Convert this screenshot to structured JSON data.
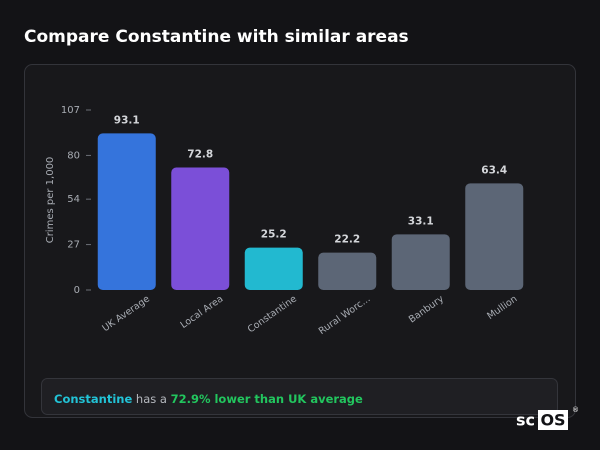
{
  "title": "Compare Constantine with similar areas",
  "chart_data": {
    "type": "bar",
    "y_label": "Crimes per 1,000",
    "categories": [
      "UK Average",
      "Local Area",
      "Constantine",
      "Rural Worc...",
      "Banbury",
      "Mullion"
    ],
    "values": [
      93.1,
      72.8,
      25.2,
      22.2,
      33.1,
      63.4
    ],
    "colors": [
      "#3574dc",
      "#7b4fd8",
      "#22b9d0",
      "#5c6676",
      "#5c6676",
      "#5c6676"
    ],
    "ylim": [
      0,
      107
    ],
    "yticks": [
      0,
      27,
      54,
      80,
      107
    ],
    "grid": false
  },
  "note": {
    "area": "Constantine",
    "text": "has a",
    "highlight": "72.9% lower than UK average"
  },
  "logo": {
    "prefix": "sc",
    "boxed": "OS",
    "mark": "®"
  }
}
